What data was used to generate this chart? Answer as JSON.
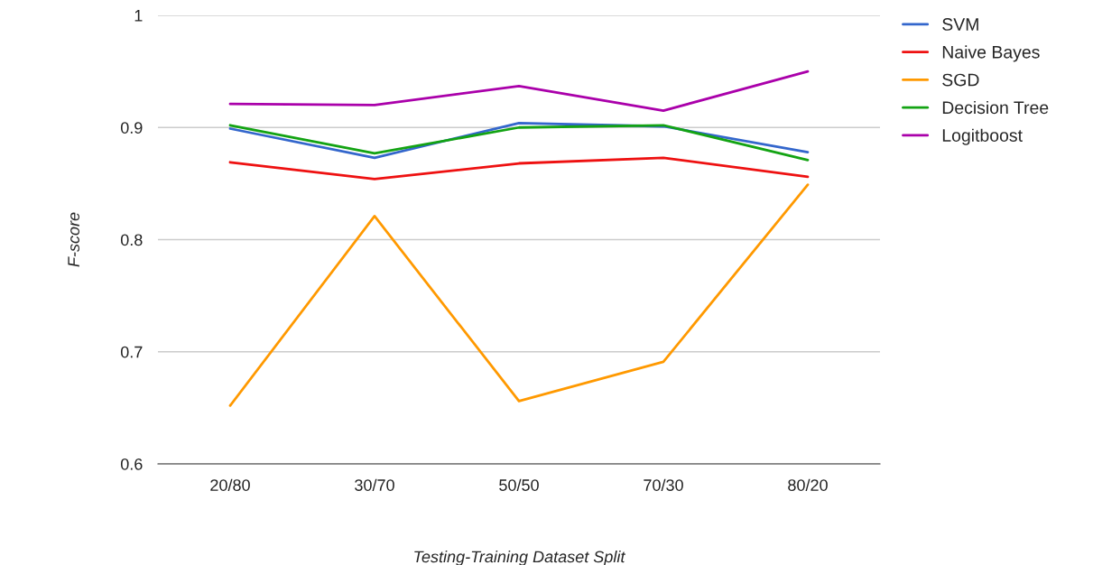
{
  "chart_data": {
    "type": "line",
    "xlabel": "Testing-Training Dataset Split",
    "ylabel": "F-score",
    "categories": [
      "20/80",
      "30/70",
      "50/50",
      "70/30",
      "80/20"
    ],
    "series": [
      {
        "name": "SVM",
        "color": "#3366cc",
        "values": [
          0.899,
          0.873,
          0.904,
          0.901,
          0.878
        ]
      },
      {
        "name": "Naive Bayes",
        "color": "#ee1111",
        "values": [
          0.869,
          0.854,
          0.868,
          0.873,
          0.856
        ]
      },
      {
        "name": "SGD",
        "color": "#ff9900",
        "values": [
          0.652,
          0.821,
          0.656,
          0.691,
          0.849
        ]
      },
      {
        "name": "Decision Tree",
        "color": "#13a313",
        "values": [
          0.902,
          0.877,
          0.9,
          0.902,
          0.871
        ]
      },
      {
        "name": "Logitboost",
        "color": "#aa00aa",
        "values": [
          0.921,
          0.92,
          0.937,
          0.915,
          0.95
        ]
      }
    ],
    "ylim": [
      0.6,
      1
    ],
    "yticks": [
      0.6,
      0.7,
      0.8,
      0.9,
      1
    ],
    "grid": "y",
    "legend": "top right",
    "marker": "none",
    "line_style": "solid"
  }
}
